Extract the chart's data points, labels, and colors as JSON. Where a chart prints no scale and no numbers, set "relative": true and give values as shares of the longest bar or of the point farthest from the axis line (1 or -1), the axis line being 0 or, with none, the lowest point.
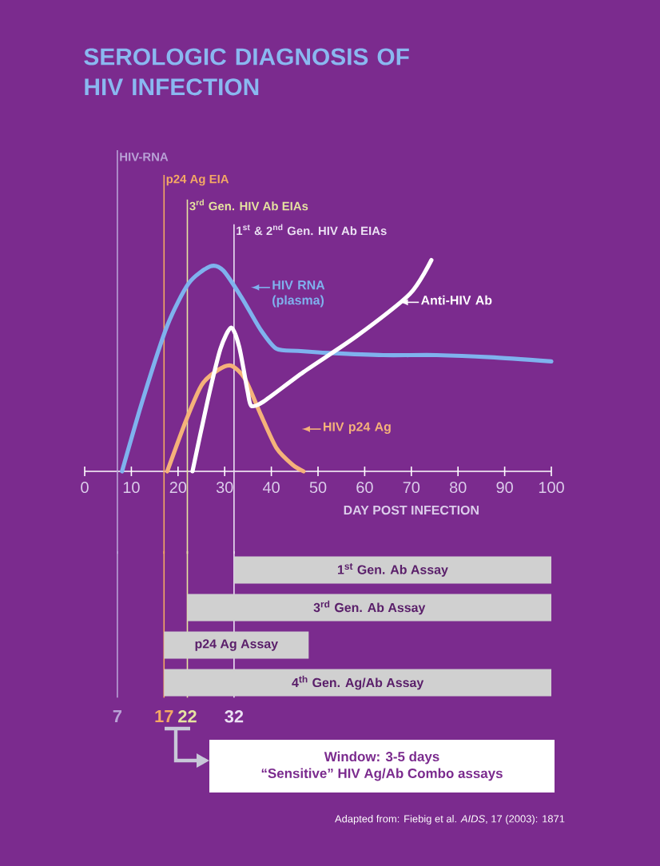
{
  "chart_data": [
    {
      "type": "line",
      "title": "SEROLOGIC DIAGNOSIS OF HIV INFECTION",
      "xlabel": "DAY POST INFECTION",
      "relative": true,
      "legend": "right",
      "xlim": [
        0,
        100
      ],
      "xticks": [
        0,
        10,
        20,
        30,
        40,
        50,
        60,
        70,
        80,
        90,
        100
      ],
      "series": [
        {
          "name": "HIV RNA (plasma)",
          "color": "#7fb2ee",
          "x": [
            8,
            12.6,
            17.7,
            22.3,
            26.9,
            29.7,
            33.7,
            37.7,
            41.1,
            45.7,
            52.6,
            64,
            75.4,
            86.9,
            100
          ],
          "values": [
            0,
            0.35,
            0.69,
            0.89,
            0.97,
            0.95,
            0.82,
            0.67,
            0.58,
            0.57,
            0.56,
            0.55,
            0.55,
            0.54,
            0.52
          ]
        },
        {
          "name": "HIV p24 Ag",
          "color": "#f5b27a",
          "x": [
            17.7,
            21.7,
            25.1,
            28.6,
            31.4,
            34.3,
            37.7,
            41.1,
            44.6,
            46.9
          ],
          "values": [
            0,
            0.24,
            0.41,
            0.48,
            0.5,
            0.44,
            0.27,
            0.11,
            0.03,
            0
          ]
        },
        {
          "name": "Anti-HIV Ab",
          "color": "#ffffff",
          "x": [
            23.1,
            26.3,
            29.1,
            31.4,
            33.1,
            34.9,
            35.7,
            38.3,
            46.9,
            58.3,
            69.7,
            74.3
          ],
          "values": [
            0,
            0.33,
            0.58,
            0.68,
            0.59,
            0.38,
            0.31,
            0.33,
            0.47,
            0.64,
            0.84,
            1
          ]
        }
      ],
      "ref_lines": [
        {
          "axis": "x",
          "value": 7,
          "label": "HIV-RNA",
          "color": "#b9a2d6"
        },
        {
          "axis": "x",
          "value": 17,
          "label": "p24 Ag EIA",
          "color": "#f5a964"
        },
        {
          "axis": "x",
          "value": 22,
          "label": "3$^{rd}$ Gen. HIV Ab EIAs",
          "color": "#e6e4a0"
        },
        {
          "axis": "x",
          "value": 32,
          "label": "1$^{st}$ & 2$^{nd}$ Gen. HIV Ab EIAs",
          "color": "#ece2f4"
        }
      ]
    },
    {
      "type": "bar",
      "orientation": "horizontal",
      "categories": [
        "1$^{st}$ Gen. Ab Assay",
        "3$^{rd}$ Gen. Ab Assay",
        "p24 Ag Assay",
        "4$^{th}$ Gen. Ag/Ab Assay"
      ],
      "base": [
        32,
        22,
        17,
        17
      ],
      "values": [
        68,
        78,
        31,
        83
      ],
      "color": "#d0d0d0",
      "xlim": [
        0,
        100
      ],
      "xticks": [
        7,
        17,
        22,
        32
      ],
      "ref_lines": [
        {
          "axis": "x",
          "value": 7,
          "color": "#b9a2d6"
        },
        {
          "axis": "x",
          "value": 17,
          "color": "#f5a964"
        },
        {
          "axis": "x",
          "value": 22,
          "color": "#e6e4a0"
        },
        {
          "axis": "x",
          "value": 32,
          "color": "#ece2f4"
        }
      ],
      "annotations": [
        "Window: 3-5 days",
        "“Sensitive” HIV Ag/Ab Combo assays",
        "Adapted from: Fiebig et al. *AIDS*, 17 (2003): 1871"
      ]
    }
  ]
}
